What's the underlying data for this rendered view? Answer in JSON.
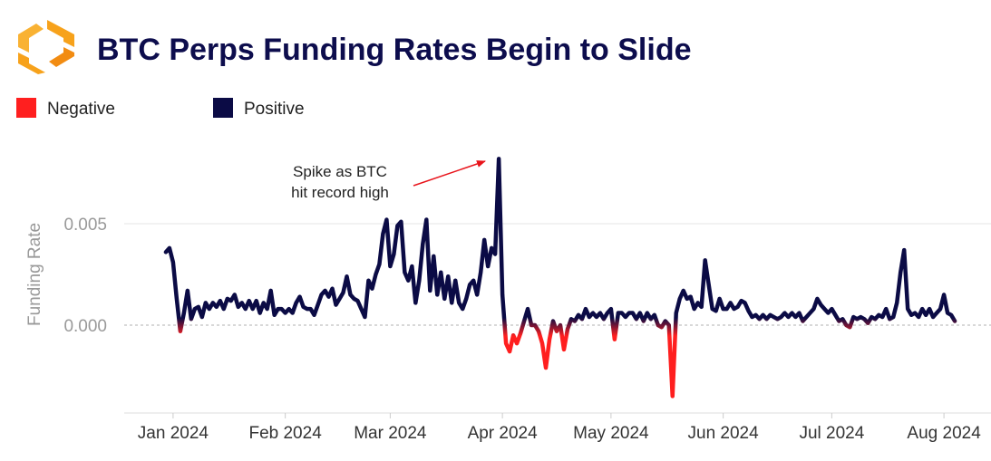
{
  "chart_data": {
    "type": "line",
    "title": "BTC Perps Funding Rates Begin to Slide",
    "ylabel": "Funding Rate",
    "annotation": [
      "Spike as BTC",
      "hit record high"
    ],
    "legend": [
      {
        "name": "Negative",
        "color": "#ff1f1f"
      },
      {
        "name": "Positive",
        "color": "#0b0b45"
      }
    ],
    "xlim": [
      -13.5,
      226
    ],
    "xticks": [
      {
        "value": 0,
        "label": "Jan 2024"
      },
      {
        "value": 31,
        "label": "Feb 2024"
      },
      {
        "value": 60,
        "label": "Mar 2024"
      },
      {
        "value": 91,
        "label": "Apr 2024"
      },
      {
        "value": 121,
        "label": "May 2024"
      },
      {
        "value": 152,
        "label": "Jun 2024"
      },
      {
        "value": 182,
        "label": "Jul 2024"
      },
      {
        "value": 213,
        "label": "Aug 2024"
      }
    ],
    "ylim": [
      -0.004,
      0.009
    ],
    "yticks": [
      {
        "value": 0,
        "label": "0.000"
      },
      0.005
    ],
    "grid": true,
    "x": [
      -2,
      -1,
      0,
      1,
      2,
      3,
      4,
      5,
      6,
      7,
      8,
      9,
      10,
      11,
      12,
      13,
      14,
      15,
      16,
      17,
      18,
      19,
      20,
      21,
      22,
      23,
      24,
      25,
      26,
      27,
      28,
      29,
      30,
      31,
      32,
      33,
      34,
      35,
      36,
      37,
      38,
      39,
      40,
      41,
      42,
      43,
      44,
      45,
      46,
      47,
      48,
      49,
      50,
      51,
      52,
      53,
      54,
      55,
      56,
      57,
      58,
      59,
      60,
      61,
      62,
      63,
      64,
      65,
      66,
      67,
      68,
      69,
      70,
      71,
      72,
      73,
      74,
      75,
      76,
      77,
      78,
      79,
      80,
      81,
      82,
      83,
      84,
      85,
      86,
      87,
      88,
      89,
      90,
      91,
      92,
      93,
      94,
      95,
      96,
      97,
      98,
      99,
      100,
      101,
      102,
      103,
      104,
      105,
      106,
      107,
      108,
      109,
      110,
      111,
      112,
      113,
      114,
      115,
      116,
      117,
      118,
      119,
      120,
      121,
      122,
      123,
      124,
      125,
      126,
      127,
      128,
      129,
      130,
      131,
      132,
      133,
      134,
      135,
      136,
      137,
      138,
      139,
      140,
      141,
      142,
      143,
      144,
      145,
      146,
      147,
      148,
      149,
      150,
      151,
      152,
      153,
      154,
      155,
      156,
      157,
      158,
      159,
      160,
      161,
      162,
      163,
      164,
      165,
      166,
      167,
      168,
      169,
      170,
      171,
      172,
      173,
      174,
      175,
      176,
      177,
      178,
      179,
      180,
      181,
      182,
      183,
      184,
      185,
      186,
      187,
      188,
      189,
      190,
      191,
      192,
      193,
      194,
      195,
      196,
      197,
      198,
      199,
      200,
      201,
      202,
      203,
      204,
      205,
      206,
      207,
      208,
      209,
      210,
      211,
      212,
      213,
      214,
      215,
      216
    ],
    "values": [
      0.0036,
      0.0038,
      0.0031,
      0.0013,
      -0.0003,
      0.0006,
      0.0017,
      0.0003,
      0.0008,
      0.0009,
      0.0004,
      0.0011,
      0.0008,
      0.0011,
      0.0009,
      0.0012,
      0.0008,
      0.0013,
      0.0012,
      0.0015,
      0.0009,
      0.0011,
      0.0008,
      0.0012,
      0.0008,
      0.0012,
      0.0006,
      0.0011,
      0.0008,
      0.0017,
      0.0005,
      0.0008,
      0.0008,
      0.0006,
      0.0008,
      0.0006,
      0.0011,
      0.0014,
      0.0009,
      0.0008,
      0.0008,
      0.0005,
      0.001,
      0.0015,
      0.0017,
      0.0014,
      0.0018,
      0.001,
      0.0013,
      0.0016,
      0.0024,
      0.0015,
      0.0013,
      0.0012,
      0.0008,
      0.0004,
      0.0022,
      0.0018,
      0.0025,
      0.003,
      0.0045,
      0.0052,
      0.0029,
      0.0035,
      0.0049,
      0.0051,
      0.0026,
      0.0022,
      0.0029,
      0.0011,
      0.0022,
      0.004,
      0.0052,
      0.0017,
      0.0034,
      0.0015,
      0.0026,
      0.0013,
      0.0024,
      0.0011,
      0.0022,
      0.0011,
      0.0008,
      0.0013,
      0.002,
      0.0022,
      0.0015,
      0.0026,
      0.0042,
      0.0029,
      0.0038,
      0.0035,
      0.0082,
      0.0015,
      -0.0009,
      -0.0013,
      -0.0005,
      -0.0009,
      -0.0004,
      0.0002,
      0.0008,
      0.0,
      0.0,
      -0.0003,
      -0.0009,
      -0.0021,
      -0.0007,
      0.0002,
      -0.0003,
      0.0,
      -0.0012,
      -0.0002,
      0.0003,
      0.0002,
      0.0005,
      0.0003,
      0.0008,
      0.0004,
      0.0006,
      0.0004,
      0.0006,
      0.0003,
      0.0006,
      0.0008,
      -0.0007,
      0.0006,
      0.0006,
      0.0004,
      0.0006,
      0.0006,
      0.0003,
      0.0006,
      0.0002,
      0.0006,
      0.0003,
      0.0005,
      0.0,
      -0.0001,
      0.0002,
      0.0,
      -0.0035,
      0.0006,
      0.0013,
      0.0017,
      0.0013,
      0.0014,
      0.0008,
      0.0011,
      0.0009,
      0.0032,
      0.002,
      0.0008,
      0.0007,
      0.0013,
      0.0008,
      0.0008,
      0.0011,
      0.0008,
      0.0009,
      0.0012,
      0.0011,
      0.0007,
      0.0004,
      0.0005,
      0.0003,
      0.0005,
      0.0003,
      0.0005,
      0.0004,
      0.0003,
      0.0004,
      0.0006,
      0.0004,
      0.0006,
      0.0004,
      0.0006,
      0.0002,
      0.0004,
      0.0006,
      0.0008,
      0.0013,
      0.001,
      0.0008,
      0.0006,
      0.0008,
      0.0005,
      0.0002,
      0.0003,
      0.0,
      -0.0001,
      0.0004,
      0.0003,
      0.0004,
      0.0003,
      0.0001,
      0.0004,
      0.0003,
      0.0005,
      0.0004,
      0.0008,
      0.0003,
      0.0004,
      0.0011,
      0.0026,
      0.0037,
      0.0008,
      0.0005,
      0.0006,
      0.0004,
      0.0008,
      0.0005,
      0.0008,
      0.0004,
      0.0006,
      0.0008,
      0.0015,
      0.0006,
      0.0005,
      0.0002
    ]
  }
}
